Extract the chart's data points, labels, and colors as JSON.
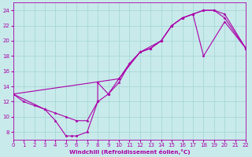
{
  "xlabel": "Windchill (Refroidissement éolien,°C)",
  "bg_color": "#c8eaea",
  "grid_color": "#a8d8d8",
  "line_color": "#aa00aa",
  "xlim": [
    0,
    22
  ],
  "ylim": [
    7,
    25
  ],
  "xticks": [
    0,
    1,
    2,
    3,
    4,
    5,
    6,
    7,
    8,
    9,
    10,
    11,
    12,
    13,
    14,
    15,
    16,
    17,
    18,
    19,
    20,
    21,
    22
  ],
  "yticks": [
    8,
    10,
    12,
    14,
    16,
    18,
    20,
    22,
    24
  ],
  "curve1_x": [
    0,
    1,
    2,
    3,
    4,
    5,
    6,
    7,
    8,
    9,
    10,
    11,
    12,
    13,
    14,
    15,
    16,
    17,
    18,
    19,
    20,
    22
  ],
  "curve1_y": [
    13,
    12,
    11.5,
    11,
    10.5,
    10,
    9.5,
    9.5,
    12,
    13,
    15,
    17,
    18.5,
    19,
    20,
    22,
    23,
    23.5,
    24,
    24,
    23,
    19
  ],
  "curve2_x": [
    0,
    10,
    12,
    14,
    15,
    16,
    17,
    18,
    19,
    20,
    22
  ],
  "curve2_y": [
    13,
    15,
    18.5,
    20,
    22,
    23,
    23.5,
    24,
    24,
    23.5,
    19
  ],
  "curve3_x": [
    0,
    3,
    4,
    5,
    5.5,
    6,
    7,
    8,
    8,
    9,
    10,
    11,
    12,
    13,
    14,
    15,
    16,
    17,
    18,
    20,
    22
  ],
  "curve3_y": [
    13,
    11,
    9.5,
    7.5,
    7.5,
    7.5,
    8,
    12,
    14.5,
    13,
    14.5,
    17,
    18.5,
    19,
    20,
    22,
    23,
    23.5,
    18,
    22.5,
    19
  ]
}
